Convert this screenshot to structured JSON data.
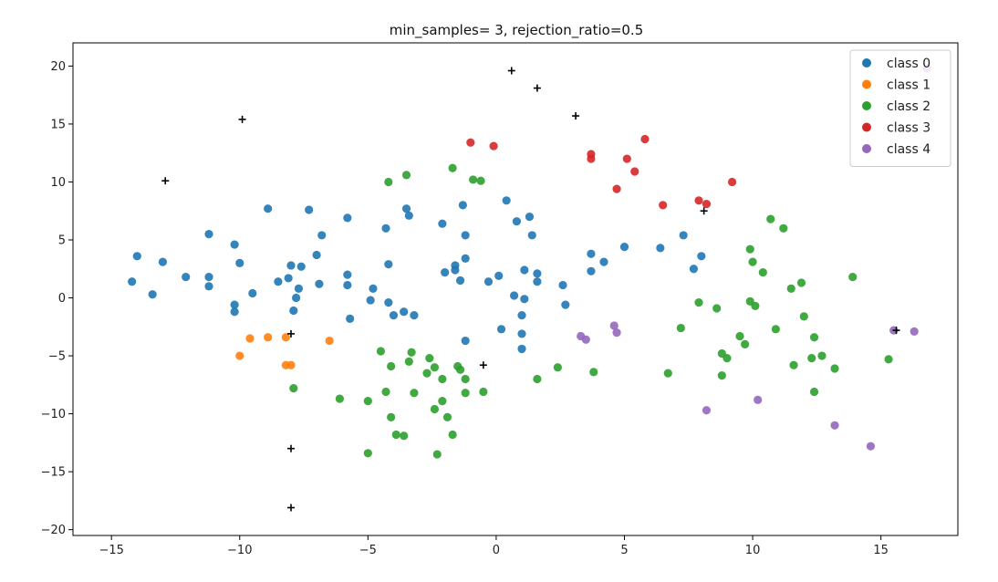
{
  "chart_data": {
    "type": "scatter",
    "title": "min_samples= 3, rejection_ratio=0.5",
    "xlim": [
      -16.5,
      18.0
    ],
    "ylim": [
      -20.5,
      22.0
    ],
    "xticks": [
      -15,
      -10,
      -5,
      0,
      5,
      10,
      15
    ],
    "yticks": [
      -20,
      -15,
      -10,
      -5,
      0,
      5,
      10,
      15,
      20
    ],
    "xtick_labels": [
      "−15",
      "−10",
      "−5",
      "0",
      "5",
      "10",
      "15"
    ],
    "ytick_labels": [
      "−20",
      "−15",
      "−10",
      "−5",
      "0",
      "5",
      "10",
      "15",
      "20"
    ],
    "grid": false,
    "legend_position": "top-right",
    "series": [
      {
        "name": "class 0",
        "color": "#1f77b4",
        "points": [
          [
            -14.2,
            1.4
          ],
          [
            -14.0,
            3.6
          ],
          [
            -13.4,
            0.3
          ],
          [
            -13.0,
            3.1
          ],
          [
            -12.1,
            1.8
          ],
          [
            -11.2,
            5.5
          ],
          [
            -11.2,
            1.8
          ],
          [
            -11.2,
            1.0
          ],
          [
            -10.2,
            4.6
          ],
          [
            -10.0,
            3.0
          ],
          [
            -10.2,
            -0.6
          ],
          [
            -10.2,
            -1.2
          ],
          [
            -9.5,
            0.4
          ],
          [
            -8.9,
            7.7
          ],
          [
            -8.5,
            1.4
          ],
          [
            -8.1,
            1.7
          ],
          [
            -8.0,
            2.8
          ],
          [
            -7.9,
            -1.1
          ],
          [
            -7.8,
            0.0
          ],
          [
            -7.7,
            0.8
          ],
          [
            -7.6,
            2.7
          ],
          [
            -7.3,
            7.6
          ],
          [
            -7.0,
            3.7
          ],
          [
            -6.9,
            1.2
          ],
          [
            -6.8,
            5.4
          ],
          [
            -5.8,
            6.9
          ],
          [
            -5.8,
            2.0
          ],
          [
            -5.8,
            1.1
          ],
          [
            -5.7,
            -1.8
          ],
          [
            -4.9,
            -0.2
          ],
          [
            -4.8,
            0.8
          ],
          [
            -4.3,
            6.0
          ],
          [
            -4.2,
            2.9
          ],
          [
            -4.2,
            -0.4
          ],
          [
            -4.0,
            -1.5
          ],
          [
            -3.6,
            -1.2
          ],
          [
            -3.5,
            7.7
          ],
          [
            -3.4,
            7.1
          ],
          [
            -3.2,
            -1.5
          ],
          [
            -2.1,
            6.4
          ],
          [
            -2.0,
            2.2
          ],
          [
            -1.6,
            2.8
          ],
          [
            -1.6,
            2.4
          ],
          [
            -1.4,
            1.5
          ],
          [
            -1.3,
            8.0
          ],
          [
            -1.2,
            5.4
          ],
          [
            -1.2,
            3.4
          ],
          [
            -1.2,
            -3.7
          ],
          [
            -0.3,
            1.4
          ],
          [
            0.1,
            1.9
          ],
          [
            0.2,
            -2.7
          ],
          [
            0.4,
            8.4
          ],
          [
            0.7,
            0.2
          ],
          [
            0.8,
            6.6
          ],
          [
            1.0,
            -1.5
          ],
          [
            1.0,
            -3.1
          ],
          [
            1.0,
            -4.4
          ],
          [
            1.1,
            2.4
          ],
          [
            1.1,
            -0.1
          ],
          [
            1.3,
            7.0
          ],
          [
            1.4,
            5.4
          ],
          [
            1.6,
            2.1
          ],
          [
            1.6,
            1.4
          ],
          [
            2.6,
            1.1
          ],
          [
            2.7,
            -0.6
          ],
          [
            3.7,
            3.8
          ],
          [
            3.7,
            2.3
          ],
          [
            4.2,
            3.1
          ],
          [
            5.0,
            4.4
          ],
          [
            6.4,
            4.3
          ],
          [
            7.3,
            5.4
          ],
          [
            7.7,
            2.5
          ],
          [
            8.0,
            3.6
          ]
        ]
      },
      {
        "name": "class 1",
        "color": "#ff7f0e",
        "points": [
          [
            -10.0,
            -5.0
          ],
          [
            -9.6,
            -3.5
          ],
          [
            -8.9,
            -3.4
          ],
          [
            -8.2,
            -3.4
          ],
          [
            -8.2,
            -5.8
          ],
          [
            -8.0,
            -5.8
          ],
          [
            -6.5,
            -3.7
          ]
        ]
      },
      {
        "name": "class 2",
        "color": "#2ca02c",
        "points": [
          [
            -7.9,
            -7.8
          ],
          [
            -6.1,
            -8.7
          ],
          [
            -5.0,
            -8.9
          ],
          [
            -5.0,
            -13.4
          ],
          [
            -4.5,
            -4.6
          ],
          [
            -4.2,
            10.0
          ],
          [
            -4.1,
            -5.9
          ],
          [
            -4.3,
            -8.1
          ],
          [
            -4.1,
            -10.3
          ],
          [
            -3.9,
            -11.8
          ],
          [
            -3.6,
            -11.9
          ],
          [
            -3.5,
            10.6
          ],
          [
            -3.4,
            -5.5
          ],
          [
            -3.3,
            -4.7
          ],
          [
            -3.2,
            -8.2
          ],
          [
            -2.7,
            -6.5
          ],
          [
            -2.6,
            -5.2
          ],
          [
            -2.4,
            -6.0
          ],
          [
            -2.1,
            -7.0
          ],
          [
            -2.1,
            -8.9
          ],
          [
            -2.4,
            -9.6
          ],
          [
            -2.3,
            -13.5
          ],
          [
            -1.9,
            -10.3
          ],
          [
            -1.7,
            11.2
          ],
          [
            -1.7,
            -11.8
          ],
          [
            -1.5,
            -5.9
          ],
          [
            -1.4,
            -6.2
          ],
          [
            -1.2,
            -7.0
          ],
          [
            -1.2,
            -8.2
          ],
          [
            -0.9,
            10.2
          ],
          [
            -0.6,
            10.1
          ],
          [
            -0.5,
            -8.1
          ],
          [
            1.6,
            -7.0
          ],
          [
            2.4,
            -6.0
          ],
          [
            3.8,
            -6.4
          ],
          [
            6.7,
            -6.5
          ],
          [
            7.2,
            -2.6
          ],
          [
            7.9,
            -0.4
          ],
          [
            8.6,
            -0.9
          ],
          [
            8.8,
            -4.8
          ],
          [
            8.8,
            -6.7
          ],
          [
            9.0,
            -5.2
          ],
          [
            9.5,
            -3.3
          ],
          [
            9.7,
            -4.0
          ],
          [
            9.9,
            4.2
          ],
          [
            9.9,
            -0.3
          ],
          [
            10.0,
            3.1
          ],
          [
            10.1,
            -0.7
          ],
          [
            10.4,
            2.2
          ],
          [
            10.7,
            6.8
          ],
          [
            10.9,
            -2.7
          ],
          [
            11.2,
            6.0
          ],
          [
            11.5,
            0.8
          ],
          [
            11.6,
            -5.8
          ],
          [
            11.9,
            1.3
          ],
          [
            12.0,
            -1.6
          ],
          [
            12.3,
            -5.2
          ],
          [
            12.4,
            -3.4
          ],
          [
            12.4,
            -8.1
          ],
          [
            12.7,
            -5.0
          ],
          [
            13.2,
            -6.1
          ],
          [
            13.9,
            1.8
          ],
          [
            15.3,
            -5.3
          ]
        ]
      },
      {
        "name": "class 3",
        "color": "#d62728",
        "points": [
          [
            -1.0,
            13.4
          ],
          [
            -0.1,
            13.1
          ],
          [
            3.7,
            12.4
          ],
          [
            3.7,
            12.0
          ],
          [
            4.7,
            9.4
          ],
          [
            5.1,
            12.0
          ],
          [
            5.4,
            10.9
          ],
          [
            5.8,
            13.7
          ],
          [
            6.5,
            8.0
          ],
          [
            7.9,
            8.4
          ],
          [
            8.2,
            8.1
          ],
          [
            9.2,
            10.0
          ]
        ]
      },
      {
        "name": "class 4",
        "color": "#9467bd",
        "points": [
          [
            3.3,
            -3.3
          ],
          [
            3.5,
            -3.6
          ],
          [
            4.6,
            -2.4
          ],
          [
            4.7,
            -3.0
          ],
          [
            8.2,
            -9.7
          ],
          [
            10.2,
            -8.8
          ],
          [
            13.2,
            -11.0
          ],
          [
            14.6,
            -12.8
          ],
          [
            15.5,
            -2.8
          ],
          [
            16.3,
            -2.9
          ],
          [
            16.8,
            19.8
          ]
        ]
      }
    ],
    "noise": {
      "marker": "+",
      "color": "#000000",
      "points": [
        [
          -12.9,
          10.1
        ],
        [
          -9.9,
          15.4
        ],
        [
          -8.0,
          -3.1
        ],
        [
          -8.0,
          -13.0
        ],
        [
          -8.0,
          -18.1
        ],
        [
          -0.5,
          -5.8
        ],
        [
          0.6,
          19.6
        ],
        [
          1.6,
          18.1
        ],
        [
          3.1,
          15.7
        ],
        [
          8.1,
          7.5
        ],
        [
          15.6,
          -2.8
        ]
      ]
    }
  }
}
